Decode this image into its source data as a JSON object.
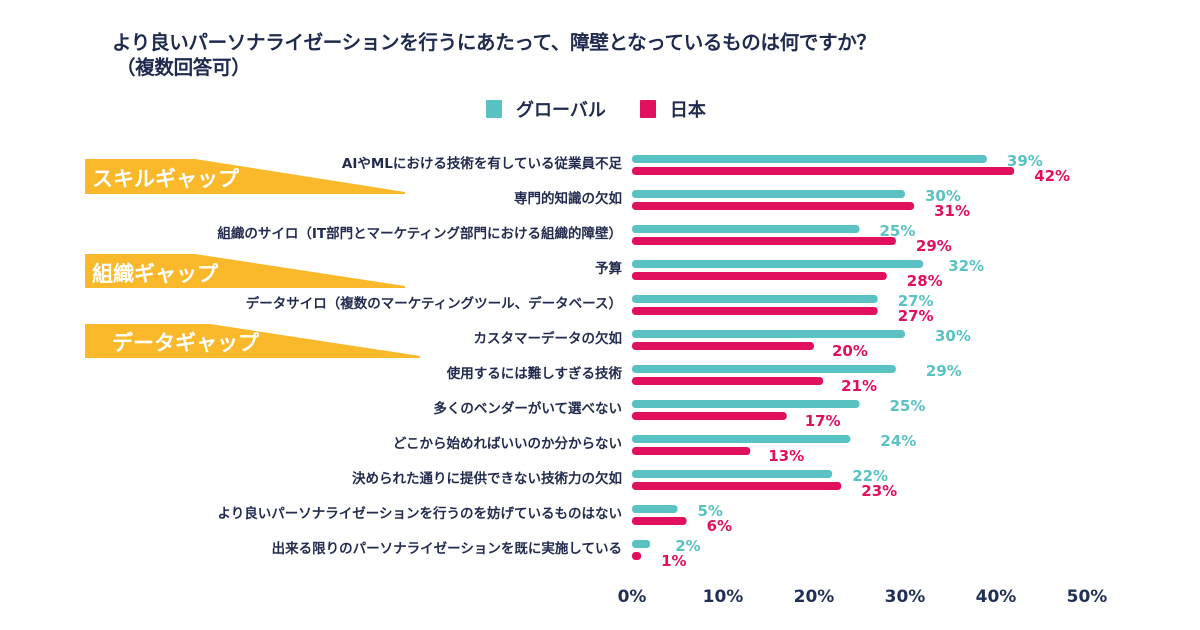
{
  "chart_data": {
    "type": "bar",
    "orientation": "horizontal",
    "title": "より良いパーソナライゼーションを行うにあたって、障壁となっているものは何ですか？",
    "subtitle": "（複数回答可）",
    "xlabel": "",
    "ylabel": "",
    "xlim": [
      0,
      50
    ],
    "grid": false,
    "legend_position": "top-center",
    "x_ticks": [
      "0%",
      "10%",
      "20%",
      "30%",
      "40%",
      "50%"
    ],
    "x_tick_values": [
      0,
      10,
      20,
      30,
      40,
      50
    ],
    "categories": [
      "AIやMLにおける技術を有している従業員不足",
      "専門的知識の欠如",
      "組織のサイロ（IT部門とマーケティング部門における組織的障壁）",
      "予算",
      "データサイロ（複数のマーケティングツール、データベース）",
      "カスタマーデータの欠如",
      "使用するには難しすぎる技術",
      "多くのベンダーがいて選べない",
      "どこから始めればいいのか分からない",
      "決められた通りに提供できない技術力の欠如",
      "より良いパーソナライゼーションを行うのを妨げているものはない",
      "出来る限りのパーソナライゼーションを既に実施している"
    ],
    "series": [
      {
        "name": "グローバル",
        "color": "#5bc2c4",
        "values": [
          39,
          30,
          25,
          32,
          27,
          30,
          29,
          25,
          24,
          22,
          5,
          2
        ],
        "labels": [
          "39%",
          "30%",
          "25%",
          "32%",
          "27%",
          "30%",
          "29%",
          "25%",
          "24%",
          "22%",
          "5%",
          "2%"
        ]
      },
      {
        "name": "日本",
        "color": "#e0105f",
        "values": [
          42,
          31,
          29,
          28,
          27,
          20,
          21,
          17,
          13,
          23,
          6,
          1
        ],
        "labels": [
          "42%",
          "31%",
          "29%",
          "28%",
          "27%",
          "20%",
          "21%",
          "17%",
          "13%",
          "23%",
          "6%",
          "1%"
        ]
      }
    ],
    "annotations": [
      {
        "text": "スキルギャップ",
        "color": "#f9b92b",
        "category_index": 0
      },
      {
        "text": "組織ギャップ",
        "color": "#f9b92b",
        "category_index": 3
      },
      {
        "text": "データギャップ",
        "color": "#f9b92b",
        "category_index": 5
      }
    ]
  }
}
